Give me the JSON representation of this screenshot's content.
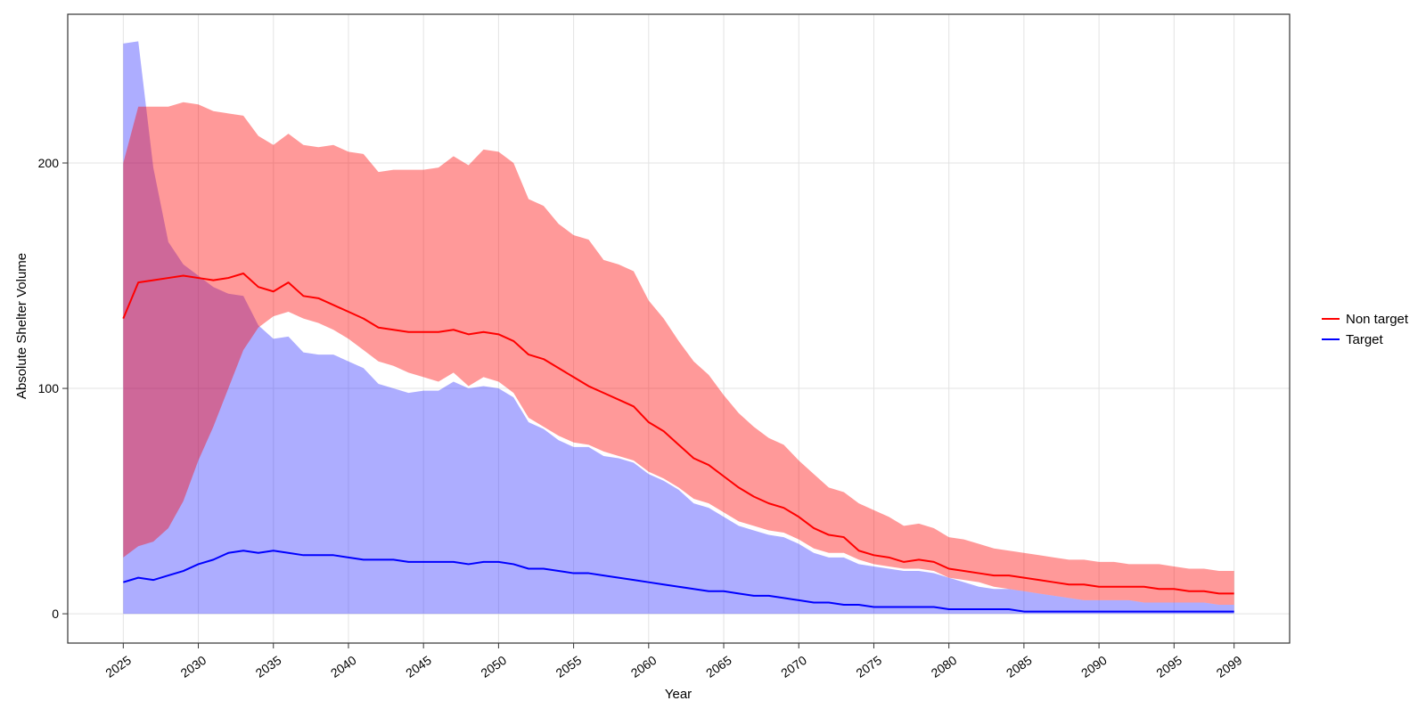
{
  "chart_data": {
    "type": "area",
    "title": "",
    "xlabel": "Year",
    "ylabel": "Absolute Shelter Volume",
    "xlim": [
      2021.3,
      2102.7
    ],
    "ylim": [
      -13,
      266
    ],
    "grid": true,
    "legend_position": "right",
    "x_ticks": [
      2025,
      2030,
      2035,
      2040,
      2045,
      2050,
      2055,
      2060,
      2065,
      2070,
      2075,
      2080,
      2085,
      2090,
      2095,
      2099
    ],
    "x_tick_labels": [
      "2025",
      "2030",
      "2035",
      "2040",
      "2045",
      "2050",
      "2055",
      "2060",
      "2065",
      "2070",
      "2075",
      "2080",
      "2085",
      "2090",
      "2095",
      "2099"
    ],
    "y_ticks": [
      0,
      100,
      200
    ],
    "y_tick_labels": [
      "0",
      "100",
      "200"
    ],
    "x": [
      2025,
      2026,
      2027,
      2028,
      2029,
      2030,
      2031,
      2032,
      2033,
      2034,
      2035,
      2036,
      2037,
      2038,
      2039,
      2040,
      2041,
      2042,
      2043,
      2044,
      2045,
      2046,
      2047,
      2048,
      2049,
      2050,
      2051,
      2052,
      2053,
      2054,
      2055,
      2056,
      2057,
      2058,
      2059,
      2060,
      2061,
      2062,
      2063,
      2064,
      2065,
      2066,
      2067,
      2068,
      2069,
      2070,
      2071,
      2072,
      2073,
      2074,
      2075,
      2076,
      2077,
      2078,
      2079,
      2080,
      2081,
      2082,
      2083,
      2084,
      2085,
      2086,
      2087,
      2088,
      2089,
      2090,
      2091,
      2092,
      2093,
      2094,
      2095,
      2096,
      2097,
      2098,
      2099
    ],
    "series": [
      {
        "name": "Non target",
        "color": "#ff0000",
        "band_color": "#ff0000",
        "mean": [
          131,
          147,
          148,
          149,
          150,
          149,
          148,
          149,
          151,
          145,
          143,
          147,
          141,
          140,
          137,
          134,
          131,
          127,
          126,
          125,
          125,
          125,
          126,
          124,
          125,
          124,
          121,
          115,
          113,
          109,
          105,
          101,
          98,
          95,
          92,
          85,
          81,
          75,
          69,
          66,
          61,
          56,
          52,
          49,
          47,
          43,
          38,
          35,
          34,
          28,
          26,
          25,
          23,
          24,
          23,
          20,
          19,
          18,
          17,
          17,
          16,
          15,
          14,
          13,
          13,
          12,
          12,
          12,
          12,
          11,
          11,
          10,
          10,
          9,
          9
        ],
        "upper": [
          200,
          225,
          225,
          225,
          227,
          226,
          223,
          222,
          221,
          212,
          208,
          213,
          208,
          207,
          208,
          205,
          204,
          196,
          197,
          197,
          197,
          198,
          203,
          199,
          206,
          205,
          200,
          184,
          181,
          173,
          168,
          166,
          157,
          155,
          152,
          139,
          131,
          121,
          112,
          106,
          97,
          89,
          83,
          78,
          75,
          68,
          62,
          56,
          54,
          49,
          46,
          43,
          39,
          40,
          38,
          34,
          33,
          31,
          29,
          28,
          27,
          26,
          25,
          24,
          24,
          23,
          23,
          22,
          22,
          22,
          21,
          20,
          20,
          19,
          19
        ],
        "lower": [
          25,
          30,
          32,
          38,
          50,
          68,
          83,
          100,
          117,
          127,
          132,
          134,
          131,
          129,
          126,
          122,
          117,
          112,
          110,
          107,
          105,
          103,
          107,
          101,
          105,
          103,
          98,
          87,
          83,
          79,
          76,
          75,
          72,
          70,
          68,
          63,
          60,
          56,
          51,
          49,
          45,
          41,
          39,
          37,
          36,
          33,
          29,
          27,
          27,
          24,
          22,
          21,
          20,
          20,
          19,
          16,
          15,
          14,
          12,
          11,
          10,
          9,
          8,
          7,
          6,
          6,
          6,
          6,
          5,
          5,
          5,
          5,
          5,
          4,
          4
        ]
      },
      {
        "name": "Target",
        "color": "#0000ff",
        "band_color": "#3333ff",
        "mean": [
          14,
          16,
          15,
          17,
          19,
          22,
          24,
          27,
          28,
          27,
          28,
          27,
          26,
          26,
          26,
          25,
          24,
          24,
          24,
          23,
          23,
          23,
          23,
          22,
          23,
          23,
          22,
          20,
          20,
          19,
          18,
          18,
          17,
          16,
          15,
          14,
          13,
          12,
          11,
          10,
          10,
          9,
          8,
          8,
          7,
          6,
          5,
          5,
          4,
          4,
          3,
          3,
          3,
          3,
          3,
          2,
          2,
          2,
          2,
          2,
          1,
          1,
          1,
          1,
          1,
          1,
          1,
          1,
          1,
          1,
          1,
          1,
          1,
          1,
          1
        ],
        "upper": [
          253,
          254,
          198,
          165,
          155,
          150,
          145,
          142,
          141,
          128,
          122,
          123,
          116,
          115,
          115,
          112,
          109,
          102,
          100,
          98,
          99,
          99,
          103,
          100,
          101,
          100,
          96,
          85,
          82,
          77,
          74,
          74,
          70,
          69,
          67,
          62,
          59,
          55,
          49,
          47,
          43,
          39,
          37,
          35,
          34,
          31,
          27,
          25,
          25,
          22,
          21,
          20,
          19,
          19,
          18,
          16,
          14,
          12,
          11,
          11,
          10,
          9,
          8,
          7,
          6,
          6,
          6,
          6,
          5,
          5,
          5,
          5,
          5,
          4,
          4
        ],
        "lower": [
          0,
          0,
          0,
          0,
          0,
          0,
          0,
          0,
          0,
          0,
          0,
          0,
          0,
          0,
          0,
          0,
          0,
          0,
          0,
          0,
          0,
          0,
          0,
          0,
          0,
          0,
          0,
          0,
          0,
          0,
          0,
          0,
          0,
          0,
          0,
          0,
          0,
          0,
          0,
          0,
          0,
          0,
          0,
          0,
          0,
          0,
          0,
          0,
          0,
          0,
          0,
          0,
          0,
          0,
          0,
          0,
          0,
          0,
          0,
          0,
          0,
          0,
          0,
          0,
          0,
          0,
          0,
          0,
          0,
          0,
          0,
          0,
          0,
          0,
          0
        ]
      }
    ]
  }
}
